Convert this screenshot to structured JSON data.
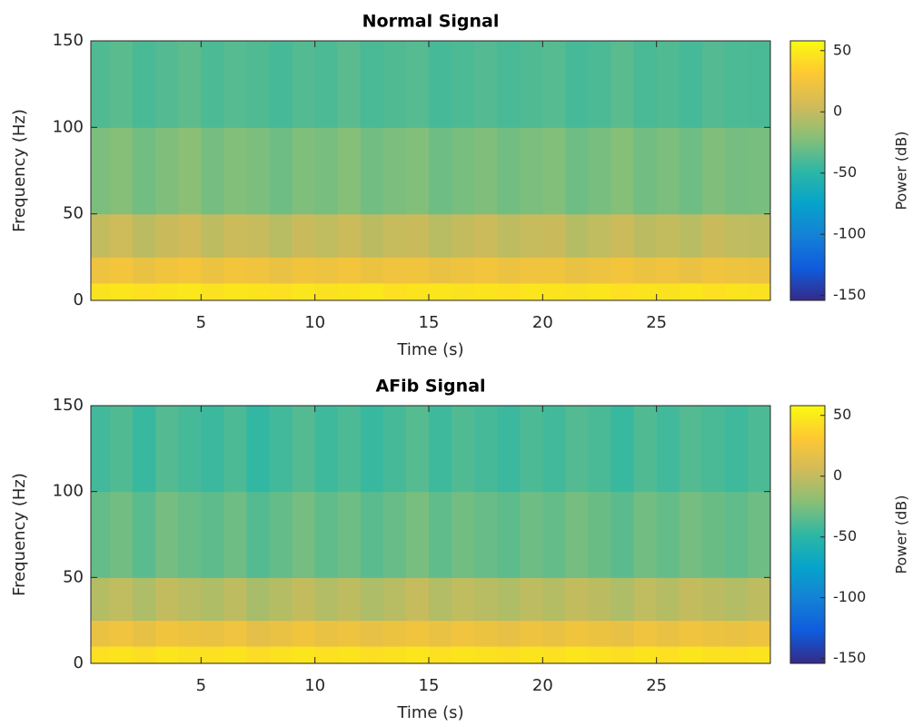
{
  "chart_data": [
    {
      "type": "heatmap",
      "title": "Normal Signal",
      "xlabel": "Time (s)",
      "ylabel": "Frequency (Hz)",
      "colorbar_label": "Power (dB)",
      "colormap": "parula",
      "xbins": [
        0,
        1,
        2,
        3,
        4,
        5,
        6,
        7,
        8,
        9,
        10,
        11,
        12,
        13,
        14,
        15,
        16,
        17,
        18,
        19,
        20,
        21,
        22,
        23,
        24,
        25,
        26,
        27,
        28,
        29,
        30
      ],
      "ybins": [
        0,
        10,
        25,
        50,
        100,
        150
      ],
      "values": [
        [
          45,
          47,
          44,
          46,
          48,
          45,
          47,
          46,
          44,
          47,
          45,
          46,
          48,
          44,
          46,
          47,
          45,
          46,
          44,
          47,
          46,
          45,
          47,
          44,
          46,
          45,
          47,
          44,
          46,
          45
        ],
        [
          22,
          25,
          20,
          24,
          26,
          21,
          25,
          23,
          20,
          24,
          22,
          25,
          21,
          23,
          24,
          20,
          22,
          25,
          21,
          23,
          24,
          20,
          22,
          25,
          21,
          23,
          20,
          24,
          22,
          21
        ],
        [
          0,
          4,
          -3,
          2,
          5,
          -2,
          3,
          1,
          -4,
          2,
          -1,
          3,
          -3,
          1,
          2,
          -4,
          0,
          3,
          -2,
          1,
          2,
          -5,
          -1,
          3,
          -3,
          0,
          -4,
          2,
          -1,
          -2
        ],
        [
          -25,
          -22,
          -28,
          -24,
          -20,
          -27,
          -23,
          -25,
          -29,
          -24,
          -26,
          -22,
          -28,
          -25,
          -23,
          -29,
          -26,
          -24,
          -28,
          -25,
          -23,
          -29,
          -26,
          -22,
          -28,
          -25,
          -29,
          -24,
          -27,
          -26
        ],
        [
          -38,
          -35,
          -40,
          -37,
          -34,
          -39,
          -36,
          -38,
          -41,
          -37,
          -39,
          -35,
          -40,
          -38,
          -36,
          -41,
          -39,
          -37,
          -40,
          -38,
          -36,
          -41,
          -39,
          -35,
          -40,
          -38,
          -41,
          -37,
          -39,
          -40
        ]
      ],
      "xlim": [
        0.16,
        30
      ],
      "ylim": [
        0,
        150
      ],
      "xticks": [
        5,
        10,
        15,
        20,
        25
      ],
      "yticks": [
        0,
        50,
        100,
        150
      ],
      "clim": [
        -154,
        58
      ],
      "cticks": [
        -150,
        -100,
        -50,
        0,
        50
      ]
    },
    {
      "type": "heatmap",
      "title": "AFib Signal",
      "xlabel": "Time (s)",
      "ylabel": "Frequency (Hz)",
      "colorbar_label": "Power (dB)",
      "colormap": "parula",
      "xbins": [
        0,
        1,
        2,
        3,
        4,
        5,
        6,
        7,
        8,
        9,
        10,
        11,
        12,
        13,
        14,
        15,
        16,
        17,
        18,
        19,
        20,
        21,
        22,
        23,
        24,
        25,
        26,
        27,
        28,
        29,
        30
      ],
      "ybins": [
        0,
        10,
        25,
        50,
        100,
        150
      ],
      "values": [
        [
          44,
          46,
          43,
          47,
          45,
          44,
          46,
          42,
          45,
          47,
          44,
          46,
          43,
          45,
          47,
          44,
          46,
          45,
          43,
          46,
          44,
          47,
          45,
          43,
          46,
          44,
          47,
          45,
          44,
          46
        ],
        [
          20,
          23,
          18,
          24,
          21,
          19,
          23,
          16,
          20,
          24,
          19,
          22,
          18,
          21,
          24,
          19,
          23,
          21,
          18,
          22,
          20,
          24,
          21,
          18,
          23,
          20,
          24,
          21,
          19,
          22
        ],
        [
          -5,
          -1,
          -8,
          0,
          -4,
          -7,
          -2,
          -10,
          -5,
          0,
          -6,
          -2,
          -8,
          -4,
          1,
          -6,
          -1,
          -4,
          -7,
          -2,
          -5,
          0,
          -3,
          -8,
          -1,
          -5,
          0,
          -3,
          -6,
          -2
        ],
        [
          -32,
          -28,
          -35,
          -27,
          -31,
          -34,
          -29,
          -37,
          -32,
          -27,
          -33,
          -29,
          -35,
          -31,
          -26,
          -33,
          -28,
          -31,
          -34,
          -29,
          -32,
          -27,
          -30,
          -35,
          -28,
          -32,
          -27,
          -30,
          -33,
          -29
        ],
        [
          -42,
          -38,
          -45,
          -37,
          -41,
          -44,
          -39,
          -47,
          -42,
          -37,
          -43,
          -39,
          -45,
          -41,
          -36,
          -43,
          -38,
          -41,
          -44,
          -39,
          -42,
          -37,
          -40,
          -45,
          -38,
          -42,
          -37,
          -40,
          -43,
          -39
        ]
      ],
      "xlim": [
        0.16,
        30
      ],
      "ylim": [
        0,
        150
      ],
      "xticks": [
        5,
        10,
        15,
        20,
        25
      ],
      "yticks": [
        0,
        50,
        100,
        150
      ],
      "clim": [
        -154,
        58
      ],
      "cticks": [
        -150,
        -100,
        -50,
        0,
        50
      ]
    }
  ]
}
